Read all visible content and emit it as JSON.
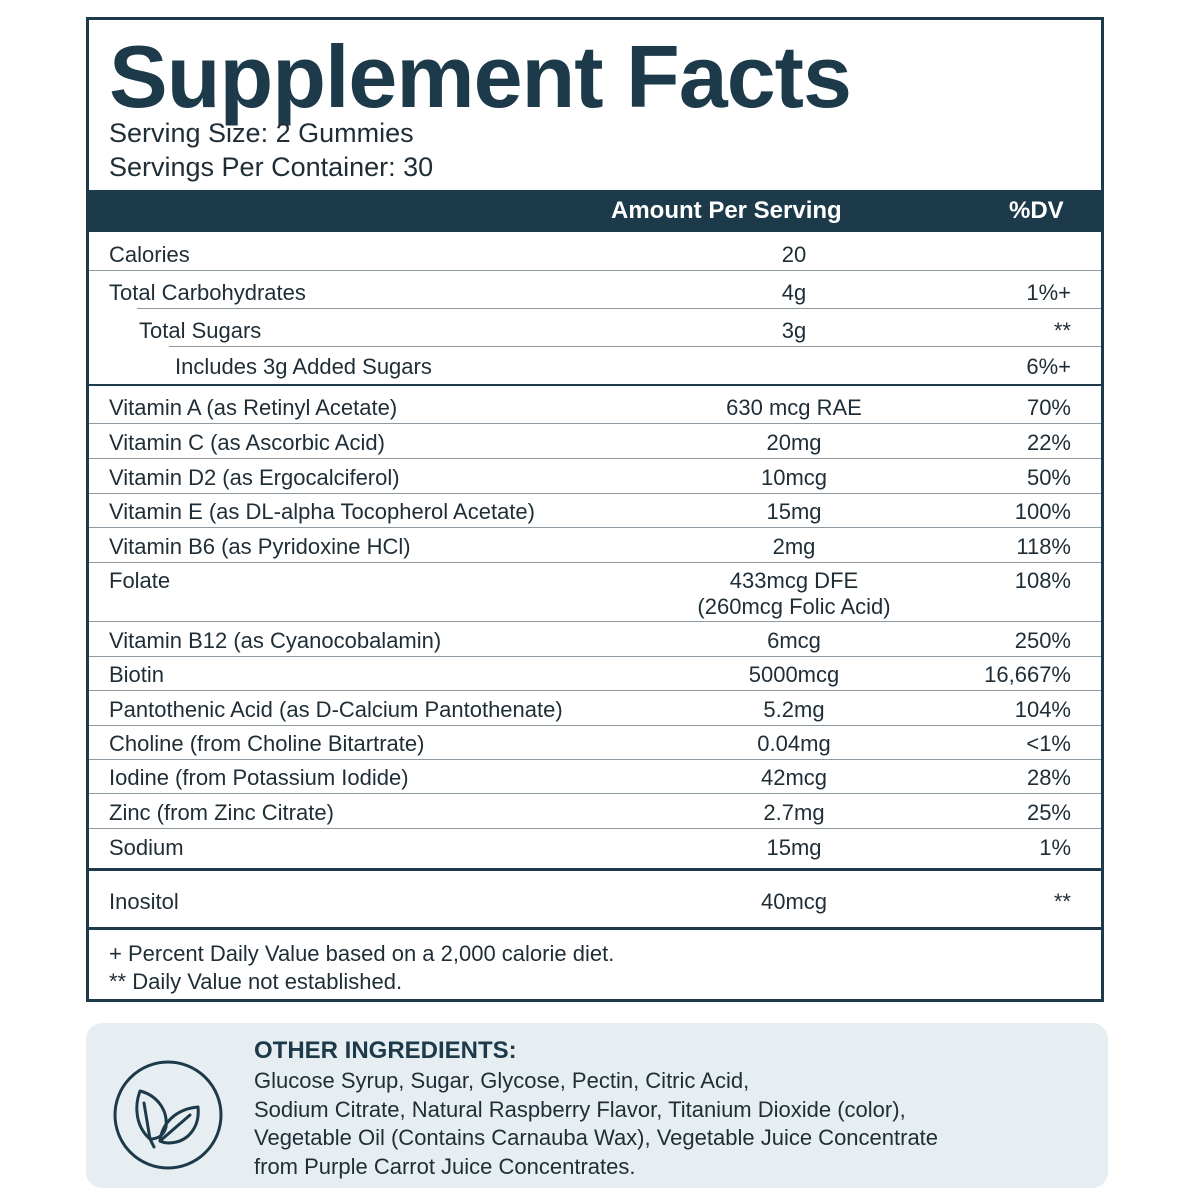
{
  "title": "Supplement Facts",
  "serving_size": "Serving Size: 2 Gummies",
  "servings_per_container": "Servings Per Container: 30",
  "header": {
    "amount": "Amount Per Serving",
    "dv": "%DV"
  },
  "rows": [
    {
      "name": "Calories",
      "amount": "20",
      "dv": ""
    },
    {
      "name": "Total Carbohydrates",
      "amount": "4g",
      "dv": "1%+"
    },
    {
      "name": "Total Sugars",
      "amount": "3g",
      "dv": "**"
    },
    {
      "name": "Includes 3g Added Sugars",
      "amount": "",
      "dv": "6%+"
    },
    {
      "name": "Vitamin A (as Retinyl Acetate)",
      "amount": "630 mcg RAE",
      "dv": "70%"
    },
    {
      "name": "Vitamin C (as Ascorbic Acid)",
      "amount": "20mg",
      "dv": "22%"
    },
    {
      "name": "Vitamin D2 (as Ergocalciferol)",
      "amount": "10mcg",
      "dv": "50%"
    },
    {
      "name": "Vitamin E (as DL-alpha Tocopherol Acetate)",
      "amount": "15mg",
      "dv": "100%"
    },
    {
      "name": "Vitamin B6 (as Pyridoxine HCl)",
      "amount": "2mg",
      "dv": "118%"
    },
    {
      "name": "Folate",
      "amount": "433mcg DFE",
      "amount_sub": "(260mcg Folic Acid)",
      "dv": "108%"
    },
    {
      "name": "Vitamin B12 (as Cyanocobalamin)",
      "amount": "6mcg",
      "dv": "250%"
    },
    {
      "name": "Biotin",
      "amount": "5000mcg",
      "dv": "16,667%"
    },
    {
      "name": "Pantothenic Acid (as D-Calcium Pantothenate)",
      "amount": "5.2mg",
      "dv": "104%"
    },
    {
      "name": "Choline (from Choline Bitartrate)",
      "amount": "0.04mg",
      "dv": "<1%"
    },
    {
      "name": "Iodine (from Potassium Iodide)",
      "amount": "42mcg",
      "dv": "28%"
    },
    {
      "name": "Zinc (from Zinc Citrate)",
      "amount": "2.7mg",
      "dv": "25%"
    },
    {
      "name": "Sodium",
      "amount": "15mg",
      "dv": "1%"
    },
    {
      "name": "Inositol",
      "amount": "40mcg",
      "dv": "**"
    }
  ],
  "footnotes": [
    "+ Percent Daily Value based on a 2,000 calorie diet.",
    "** Daily Value not established."
  ],
  "other_ingredients": {
    "title": "OTHER INGREDIENTS:",
    "lines": [
      "Glucose Syrup, Sugar, Glycose, Pectin, Citric Acid,",
      "Sodium Citrate, Natural Raspberry Flavor, Titanium Dioxide (color),",
      "Vegetable Oil (Contains Carnauba Wax), Vegetable Juice Concentrate",
      "from Purple Carrot Juice Concentrates."
    ],
    "icon": "leaf-icon"
  },
  "colors": {
    "primary": "#1d3a4a",
    "ingredients_bg": "#e6eef1"
  }
}
